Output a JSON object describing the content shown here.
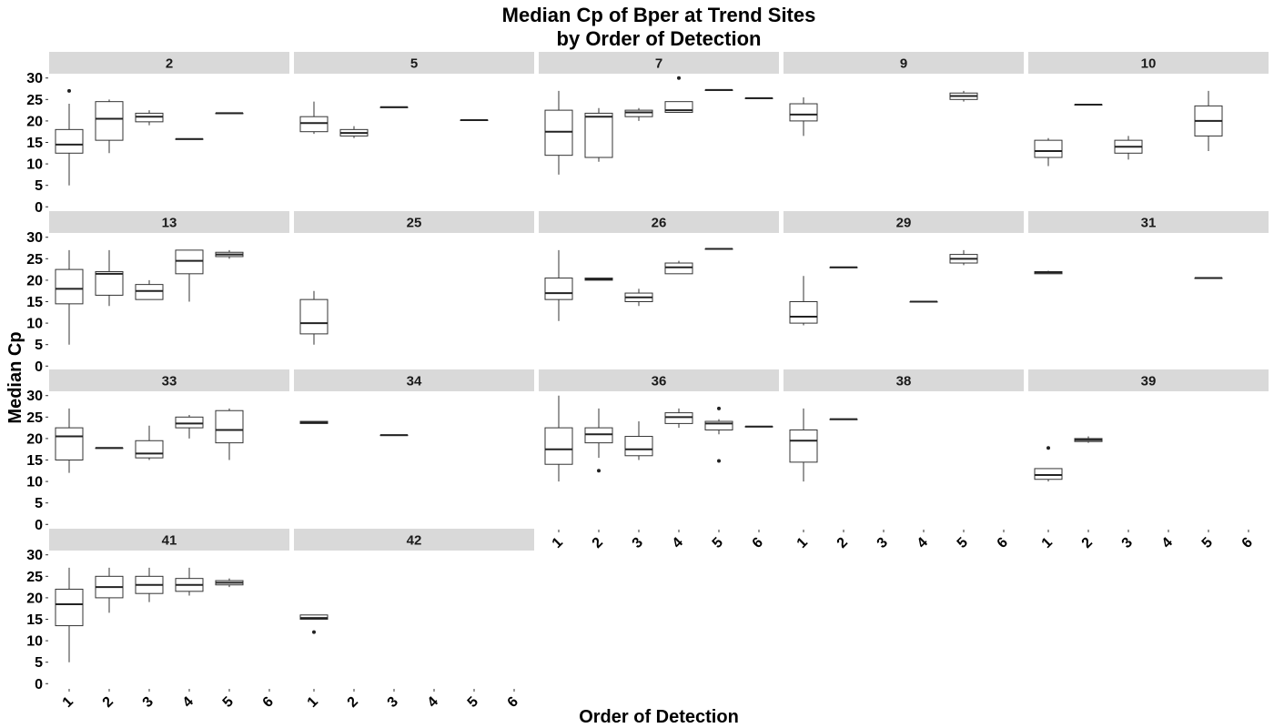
{
  "chart_data": {
    "type": "box",
    "title": "Median Cp of Bper at Trend Sites",
    "subtitle": "by Order of Detection",
    "xlabel": "Order of Detection",
    "ylabel": "Median Cp",
    "categories": [
      "1",
      "2",
      "3",
      "4",
      "5",
      "6"
    ],
    "yticks": [
      "0",
      "5",
      "10",
      "15",
      "20",
      "25",
      "30"
    ],
    "ylim": [
      -1,
      31
    ],
    "ncol": 5,
    "facets": [
      {
        "label": "2",
        "boxes": [
          {
            "x": 1,
            "min": 5,
            "q1": 12.5,
            "med": 14.5,
            "q3": 18,
            "max": 24,
            "out": [
              27
            ]
          },
          {
            "x": 2,
            "min": 12.5,
            "q1": 15.5,
            "med": 20.5,
            "q3": 24.5,
            "max": 25,
            "out": []
          },
          {
            "x": 3,
            "min": 19,
            "q1": 19.8,
            "med": 21,
            "q3": 21.8,
            "max": 22.5,
            "out": []
          },
          {
            "x": 4,
            "min": 15.8,
            "q1": 15.8,
            "med": 15.8,
            "q3": 15.8,
            "max": 15.8,
            "out": []
          },
          {
            "x": 5,
            "min": 21.8,
            "q1": 21.8,
            "med": 21.8,
            "q3": 21.8,
            "max": 21.8,
            "out": []
          }
        ]
      },
      {
        "label": "5",
        "boxes": [
          {
            "x": 1,
            "min": 17,
            "q1": 17.5,
            "med": 19.5,
            "q3": 21,
            "max": 24.5,
            "out": []
          },
          {
            "x": 2,
            "min": 16,
            "q1": 16.5,
            "med": 17.2,
            "q3": 18,
            "max": 18.8,
            "out": []
          },
          {
            "x": 3,
            "min": 23.2,
            "q1": 23.2,
            "med": 23.2,
            "q3": 23.2,
            "max": 23.2,
            "out": []
          },
          {
            "x": 5,
            "min": 20.2,
            "q1": 20.2,
            "med": 20.2,
            "q3": 20.2,
            "max": 20.2,
            "out": []
          }
        ]
      },
      {
        "label": "7",
        "boxes": [
          {
            "x": 1,
            "min": 7.5,
            "q1": 12,
            "med": 17.5,
            "q3": 22.5,
            "max": 27,
            "out": []
          },
          {
            "x": 2,
            "min": 10.5,
            "q1": 11.5,
            "med": 21,
            "q3": 21.8,
            "max": 23,
            "out": []
          },
          {
            "x": 3,
            "min": 20,
            "q1": 21,
            "med": 22,
            "q3": 22.5,
            "max": 23,
            "out": []
          },
          {
            "x": 4,
            "min": 22,
            "q1": 22,
            "med": 22.5,
            "q3": 24.5,
            "max": 24.5,
            "out": [
              30
            ]
          },
          {
            "x": 5,
            "min": 27.2,
            "q1": 27.2,
            "med": 27.2,
            "q3": 27.2,
            "max": 27.2,
            "out": []
          },
          {
            "x": 6,
            "min": 25.3,
            "q1": 25.3,
            "med": 25.3,
            "q3": 25.3,
            "max": 25.3,
            "out": []
          }
        ]
      },
      {
        "label": "9",
        "boxes": [
          {
            "x": 1,
            "min": 16.5,
            "q1": 20,
            "med": 21.5,
            "q3": 24,
            "max": 25.5,
            "out": []
          },
          {
            "x": 5,
            "min": 24.5,
            "q1": 25,
            "med": 25.8,
            "q3": 26.5,
            "max": 27,
            "out": []
          }
        ]
      },
      {
        "label": "10",
        "boxes": [
          {
            "x": 1,
            "min": 9.5,
            "q1": 11.5,
            "med": 13,
            "q3": 15.5,
            "max": 16,
            "out": []
          },
          {
            "x": 2,
            "min": 23.8,
            "q1": 23.8,
            "med": 23.8,
            "q3": 23.8,
            "max": 23.8,
            "out": []
          },
          {
            "x": 3,
            "min": 11,
            "q1": 12.5,
            "med": 14,
            "q3": 15.5,
            "max": 16.5,
            "out": []
          },
          {
            "x": 5,
            "min": 13,
            "q1": 16.5,
            "med": 20,
            "q3": 23.5,
            "max": 27,
            "out": []
          }
        ]
      },
      {
        "label": "13",
        "boxes": [
          {
            "x": 1,
            "min": 5,
            "q1": 14.5,
            "med": 18,
            "q3": 22.5,
            "max": 27,
            "out": []
          },
          {
            "x": 2,
            "min": 14,
            "q1": 16.5,
            "med": 21.5,
            "q3": 22,
            "max": 27,
            "out": []
          },
          {
            "x": 3,
            "min": 15.5,
            "q1": 15.5,
            "med": 17.5,
            "q3": 19,
            "max": 20,
            "out": []
          },
          {
            "x": 4,
            "min": 15,
            "q1": 21.5,
            "med": 24.5,
            "q3": 27,
            "max": 27,
            "out": []
          },
          {
            "x": 5,
            "min": 25,
            "q1": 25.5,
            "med": 26,
            "q3": 26.5,
            "max": 27,
            "out": []
          }
        ]
      },
      {
        "label": "25",
        "boxes": [
          {
            "x": 1,
            "min": 5,
            "q1": 7.5,
            "med": 10,
            "q3": 15.5,
            "max": 17.5,
            "out": []
          }
        ]
      },
      {
        "label": "26",
        "boxes": [
          {
            "x": 1,
            "min": 10.5,
            "q1": 15.5,
            "med": 17,
            "q3": 20.5,
            "max": 27,
            "out": []
          },
          {
            "x": 2,
            "min": 20,
            "q1": 20,
            "med": 20.2,
            "q3": 20.5,
            "max": 20.5,
            "out": []
          },
          {
            "x": 3,
            "min": 14,
            "q1": 15,
            "med": 16,
            "q3": 17,
            "max": 18,
            "out": []
          },
          {
            "x": 4,
            "min": 21.5,
            "q1": 21.5,
            "med": 23,
            "q3": 24,
            "max": 24.5,
            "out": []
          },
          {
            "x": 5,
            "min": 27.3,
            "q1": 27.3,
            "med": 27.3,
            "q3": 27.3,
            "max": 27.3,
            "out": []
          }
        ]
      },
      {
        "label": "29",
        "boxes": [
          {
            "x": 1,
            "min": 9.5,
            "q1": 10,
            "med": 11.5,
            "q3": 15,
            "max": 21,
            "out": []
          },
          {
            "x": 2,
            "min": 23,
            "q1": 23,
            "med": 23,
            "q3": 23,
            "max": 23,
            "out": []
          },
          {
            "x": 4,
            "min": 15,
            "q1": 15,
            "med": 15,
            "q3": 15,
            "max": 15,
            "out": []
          },
          {
            "x": 5,
            "min": 23.5,
            "q1": 24,
            "med": 25,
            "q3": 26,
            "max": 27,
            "out": []
          }
        ]
      },
      {
        "label": "31",
        "boxes": [
          {
            "x": 1,
            "min": 21.5,
            "q1": 21.5,
            "med": 21.8,
            "q3": 22,
            "max": 22.2,
            "out": []
          },
          {
            "x": 5,
            "min": 20.5,
            "q1": 20.5,
            "med": 20.5,
            "q3": 20.5,
            "max": 20.5,
            "out": []
          }
        ]
      },
      {
        "label": "33",
        "boxes": [
          {
            "x": 1,
            "min": 12,
            "q1": 15,
            "med": 20.5,
            "q3": 22.5,
            "max": 27,
            "out": []
          },
          {
            "x": 2,
            "min": 17.8,
            "q1": 17.8,
            "med": 17.8,
            "q3": 17.8,
            "max": 17.8,
            "out": []
          },
          {
            "x": 3,
            "min": 15,
            "q1": 15.5,
            "med": 16.5,
            "q3": 19.5,
            "max": 23,
            "out": []
          },
          {
            "x": 4,
            "min": 20,
            "q1": 22.5,
            "med": 23.5,
            "q3": 25,
            "max": 25.5,
            "out": []
          },
          {
            "x": 5,
            "min": 15,
            "q1": 19,
            "med": 22,
            "q3": 26.5,
            "max": 27,
            "out": []
          }
        ]
      },
      {
        "label": "34",
        "boxes": [
          {
            "x": 1,
            "min": 23.5,
            "q1": 23.5,
            "med": 23.7,
            "q3": 24,
            "max": 24,
            "out": []
          },
          {
            "x": 3,
            "min": 20.8,
            "q1": 20.8,
            "med": 20.8,
            "q3": 20.8,
            "max": 20.8,
            "out": []
          }
        ]
      },
      {
        "label": "36",
        "boxes": [
          {
            "x": 1,
            "min": 10,
            "q1": 14,
            "med": 17.5,
            "q3": 22.5,
            "max": 30,
            "out": []
          },
          {
            "x": 2,
            "min": 15.5,
            "q1": 19,
            "med": 21,
            "q3": 22.5,
            "max": 27,
            "out": [
              12.5
            ]
          },
          {
            "x": 3,
            "min": 15,
            "q1": 16,
            "med": 17.5,
            "q3": 20.5,
            "max": 24,
            "out": []
          },
          {
            "x": 4,
            "min": 22.5,
            "q1": 23.5,
            "med": 25,
            "q3": 26,
            "max": 27,
            "out": []
          },
          {
            "x": 5,
            "min": 21,
            "q1": 22,
            "med": 23.5,
            "q3": 24,
            "max": 24.5,
            "out": [
              14.8,
              27
            ]
          },
          {
            "x": 6,
            "min": 22.8,
            "q1": 22.8,
            "med": 22.8,
            "q3": 22.8,
            "max": 22.8,
            "out": []
          }
        ]
      },
      {
        "label": "38",
        "boxes": [
          {
            "x": 1,
            "min": 10,
            "q1": 14.5,
            "med": 19.5,
            "q3": 22,
            "max": 27,
            "out": []
          },
          {
            "x": 2,
            "min": 24.5,
            "q1": 24.5,
            "med": 24.5,
            "q3": 24.5,
            "max": 24.5,
            "out": []
          }
        ]
      },
      {
        "label": "39",
        "boxes": [
          {
            "x": 1,
            "min": 10,
            "q1": 10.5,
            "med": 11.5,
            "q3": 13,
            "max": 13,
            "out": [
              17.8
            ]
          },
          {
            "x": 2,
            "min": 19,
            "q1": 19.3,
            "med": 19.7,
            "q3": 20,
            "max": 20.5,
            "out": []
          }
        ]
      },
      {
        "label": "41",
        "boxes": [
          {
            "x": 1,
            "min": 5,
            "q1": 13.5,
            "med": 18.5,
            "q3": 22,
            "max": 27,
            "out": []
          },
          {
            "x": 2,
            "min": 16.5,
            "q1": 20,
            "med": 22.5,
            "q3": 25,
            "max": 27,
            "out": []
          },
          {
            "x": 3,
            "min": 19,
            "q1": 21,
            "med": 23,
            "q3": 25,
            "max": 27,
            "out": []
          },
          {
            "x": 4,
            "min": 20.5,
            "q1": 21.5,
            "med": 23,
            "q3": 24.5,
            "max": 27,
            "out": []
          },
          {
            "x": 5,
            "min": 22.5,
            "q1": 23,
            "med": 23.5,
            "q3": 24,
            "max": 24.5,
            "out": []
          }
        ]
      },
      {
        "label": "42",
        "boxes": [
          {
            "x": 1,
            "min": 15,
            "q1": 15,
            "med": 15.3,
            "q3": 16,
            "max": 16,
            "out": [
              12
            ]
          }
        ]
      }
    ]
  },
  "colors": {
    "strip": "#d9d9d9",
    "box_line": "#333333",
    "box_fill": "#ffffff"
  }
}
